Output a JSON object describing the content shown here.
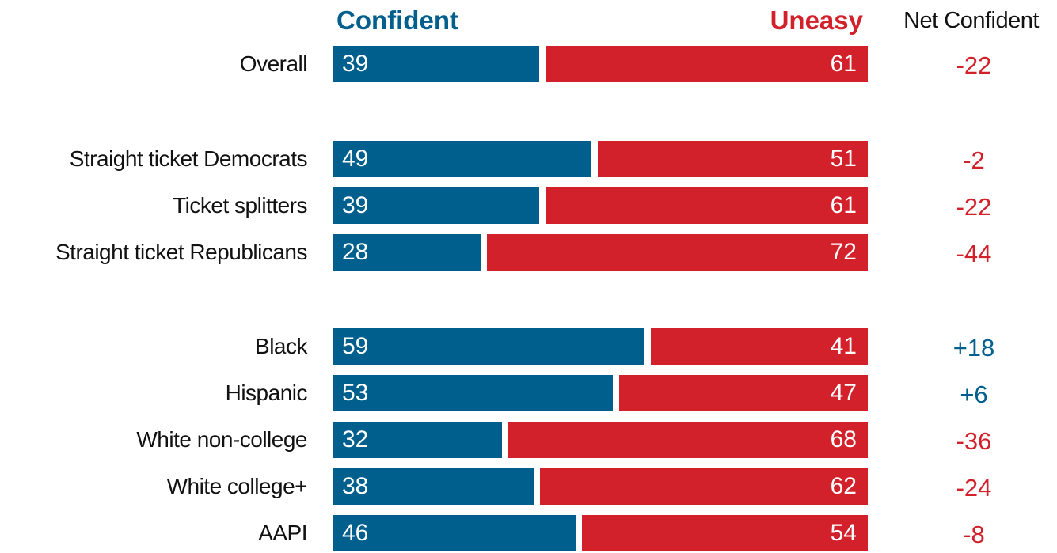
{
  "chart_data": {
    "type": "bar",
    "headers": {
      "confident": "Confident",
      "uneasy": "Uneasy",
      "net": "Net Confident"
    },
    "series": [
      {
        "name": "Confident",
        "values": [
          39,
          49,
          39,
          28,
          59,
          53,
          32,
          38,
          46
        ]
      },
      {
        "name": "Uneasy",
        "values": [
          61,
          51,
          61,
          72,
          41,
          47,
          68,
          62,
          54
        ]
      }
    ],
    "rows": [
      {
        "label": "Overall",
        "confident": 39,
        "uneasy": 61,
        "net": "-22"
      },
      {
        "label": "Straight ticket Democrats",
        "confident": 49,
        "uneasy": 51,
        "net": "-2"
      },
      {
        "label": "Ticket splitters",
        "confident": 39,
        "uneasy": 61,
        "net": "-22"
      },
      {
        "label": "Straight ticket Republicans",
        "confident": 28,
        "uneasy": 72,
        "net": "-44"
      },
      {
        "label": "Black",
        "confident": 59,
        "uneasy": 41,
        "net": "+18"
      },
      {
        "label": "Hispanic",
        "confident": 53,
        "uneasy": 47,
        "net": "+6"
      },
      {
        "label": "White non-college",
        "confident": 32,
        "uneasy": 68,
        "net": "-36"
      },
      {
        "label": "White college+",
        "confident": 38,
        "uneasy": 62,
        "net": "-24"
      },
      {
        "label": "AAPI",
        "confident": 46,
        "uneasy": 54,
        "net": "-8"
      }
    ],
    "colors": {
      "confident": "#005f8c",
      "uneasy": "#d3212b",
      "positive_net": "#005f8c",
      "negative_net": "#d3212b"
    }
  }
}
